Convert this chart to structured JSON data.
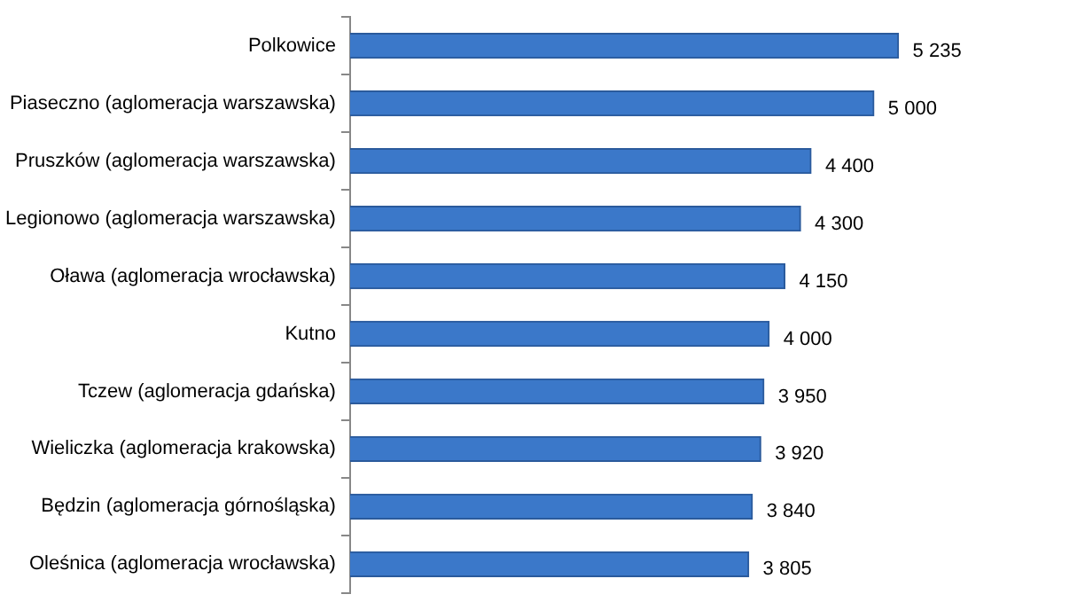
{
  "chart_data": {
    "type": "bar",
    "orientation": "horizontal",
    "categories": [
      "Polkowice",
      "Piaseczno (aglomeracja warszawska)",
      "Pruszków (aglomeracja warszawska)",
      "Legionowo (aglomeracja warszawska)",
      "Oława (aglomeracja wrocławska)",
      "Kutno",
      "Tczew (aglomeracja gdańska)",
      "Wieliczka (aglomeracja krakowska)",
      "Będzin (aglomeracja górnośląska)",
      "Oleśnica (aglomeracja wrocławska)"
    ],
    "values": [
      5235,
      5000,
      4400,
      4300,
      4150,
      4000,
      3950,
      3920,
      3840,
      3805
    ],
    "color": "#3b78c9",
    "value_labels": [
      "5 235",
      "5 000",
      "4 400",
      "4 300",
      "4 150",
      "4 000",
      "3 950",
      "3 920",
      "3 840",
      "3 805"
    ],
    "grid": false,
    "legend": false
  }
}
